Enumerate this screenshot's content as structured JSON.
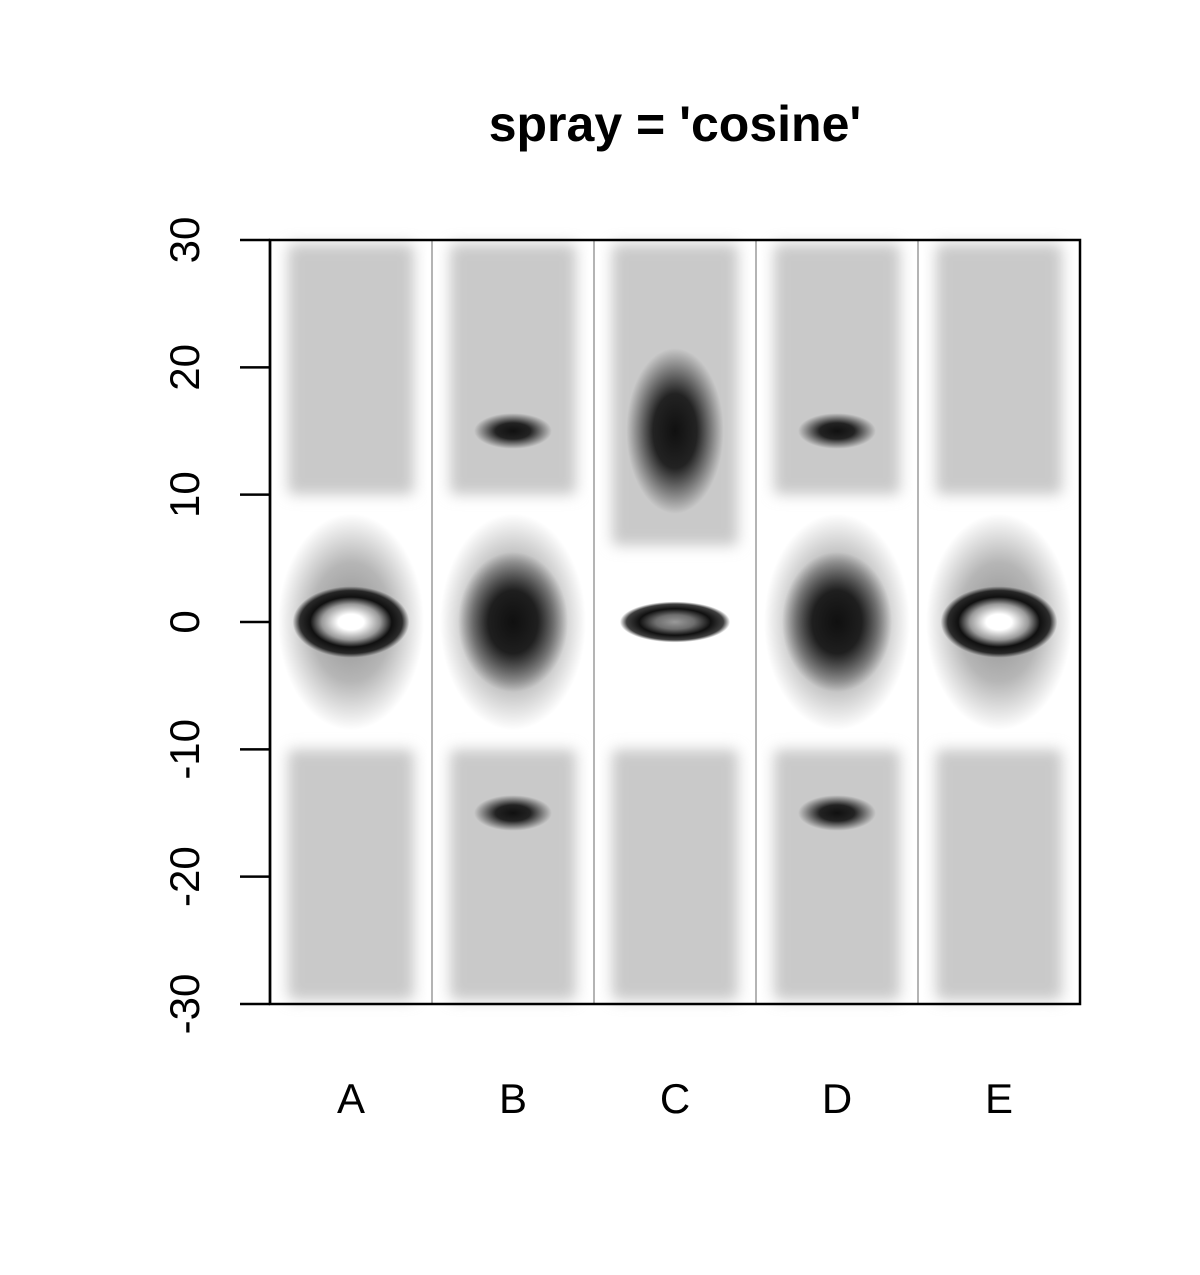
{
  "chart_data": {
    "type": "heatmap",
    "title": "spray = 'cosine'",
    "xlabel": "",
    "ylabel": "",
    "categories": [
      "A",
      "B",
      "C",
      "D",
      "E"
    ],
    "ylim": [
      -30,
      30
    ],
    "y_ticks": [
      "-30",
      "-20",
      "-10",
      "0",
      "10",
      "20",
      "30"
    ],
    "grid": false,
    "legend": "none",
    "colormap": "grayscale",
    "colors": {
      "background": "#ffffff",
      "axis": "#000000",
      "panel_divider": "#b4b4b4",
      "band": "#c9c9c9",
      "halo": "#7a7a7a",
      "core_dark": "#101010",
      "core_light": "#ffffff"
    },
    "series": [
      {
        "category": "A",
        "bands": [
          [
            -30,
            -10
          ],
          [
            10,
            30
          ]
        ],
        "halo": {
          "y": 0,
          "x_spread": 0.45,
          "y_spread": 8.5
        },
        "blobs": [
          {
            "y": 0,
            "x_spread": 0.36,
            "y_spread": 2.8,
            "ring": true
          }
        ]
      },
      {
        "category": "B",
        "bands": [
          [
            -30,
            -10
          ],
          [
            10,
            30
          ]
        ],
        "halo": {
          "y": 0,
          "x_spread": 0.45,
          "y_spread": 8.5
        },
        "blobs": [
          {
            "y": 0,
            "x_spread": 0.34,
            "y_spread": 5.5,
            "ring": false
          },
          {
            "y": 15,
            "x_spread": 0.24,
            "y_spread": 1.4,
            "ring": false
          },
          {
            "y": -15,
            "x_spread": 0.24,
            "y_spread": 1.4,
            "ring": false
          }
        ]
      },
      {
        "category": "C",
        "bands": [
          [
            -30,
            -10
          ],
          [
            6,
            30
          ]
        ],
        "halo": null,
        "blobs": [
          {
            "y": 15,
            "x_spread": 0.3,
            "y_spread": 6.5,
            "ring": false
          },
          {
            "y": 0,
            "x_spread": 0.34,
            "y_spread": 1.6,
            "ring": true
          }
        ]
      },
      {
        "category": "D",
        "bands": [
          [
            -30,
            -10
          ],
          [
            10,
            30
          ]
        ],
        "halo": {
          "y": 0,
          "x_spread": 0.45,
          "y_spread": 8.5
        },
        "blobs": [
          {
            "y": 0,
            "x_spread": 0.34,
            "y_spread": 5.5,
            "ring": false
          },
          {
            "y": 15,
            "x_spread": 0.24,
            "y_spread": 1.4,
            "ring": false
          },
          {
            "y": -15,
            "x_spread": 0.24,
            "y_spread": 1.4,
            "ring": false
          }
        ]
      },
      {
        "category": "E",
        "bands": [
          [
            -30,
            -10
          ],
          [
            10,
            30
          ]
        ],
        "halo": {
          "y": 0,
          "x_spread": 0.45,
          "y_spread": 8.5
        },
        "blobs": [
          {
            "y": 0,
            "x_spread": 0.36,
            "y_spread": 2.8,
            "ring": true
          }
        ]
      }
    ]
  }
}
